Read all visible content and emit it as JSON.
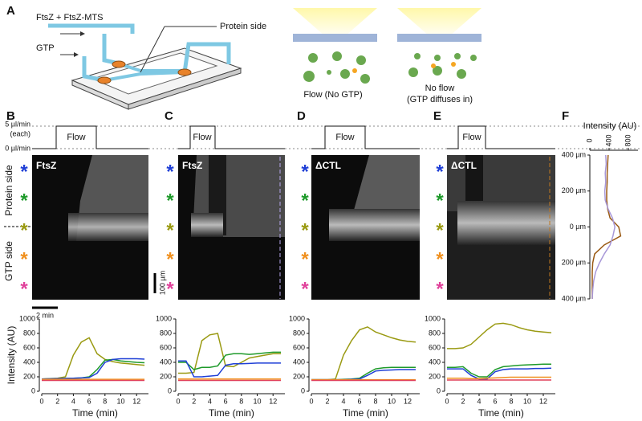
{
  "figure": {
    "panel_labels": [
      "A",
      "B",
      "C",
      "D",
      "E",
      "F"
    ],
    "schematic": {
      "inputs": [
        "FtsZ + FtsZ-MTS",
        "GTP"
      ],
      "callout": "Protein side",
      "conditions": [
        [
          "Flow (No GTP)"
        ],
        [
          "No flow",
          "(GTP diffuses in)"
        ]
      ]
    },
    "flow_axis": {
      "high": "5 µl/min",
      "high_note": "(each)",
      "low": "0 µl/min"
    },
    "kymographs": [
      {
        "flow": "Flow",
        "protein": "FtsZ"
      },
      {
        "flow": "Flow",
        "protein": "FtsZ"
      },
      {
        "flow": "Flow",
        "protein": "ΔCTL"
      },
      {
        "flow": "Flow",
        "protein": "ΔCTL"
      }
    ],
    "side_labels": [
      "Protein side",
      "GTP side"
    ],
    "markers": [
      {
        "text": "*",
        "color": "#1f3fd6"
      },
      {
        "text": "*",
        "color": "#1e9a2a"
      },
      {
        "text": "*",
        "color": "#9a9a12"
      },
      {
        "text": "*",
        "color": "#f0901e"
      },
      {
        "text": "*",
        "color": "#e0409a"
      }
    ],
    "scale_bars": {
      "space": "100 µm",
      "time": "2 min"
    }
  },
  "chart_data": [
    {
      "type": "line",
      "ylabel": "Intensity (AU)",
      "xlabel": "Time (min)",
      "x": [
        0,
        1,
        2,
        3,
        4,
        5,
        6,
        7,
        8,
        9,
        10,
        11,
        12,
        13
      ],
      "xlim": [
        0,
        13.5
      ],
      "xticks": [
        0,
        2,
        4,
        6,
        8,
        10,
        12
      ],
      "ylim": [
        0,
        1000
      ],
      "yticks": [
        0,
        200,
        400,
        600,
        800,
        1000
      ],
      "series": [
        {
          "color": "#9a9a12",
          "values": [
            170,
            175,
            180,
            200,
            500,
            680,
            740,
            520,
            440,
            410,
            390,
            380,
            370,
            360
          ]
        },
        {
          "color": "#1e9a2a",
          "values": [
            170,
            172,
            175,
            178,
            180,
            185,
            200,
            300,
            430,
            440,
            420,
            410,
            400,
            395
          ]
        },
        {
          "color": "#1f3fd6",
          "values": [
            170,
            172,
            175,
            178,
            180,
            185,
            190,
            250,
            400,
            440,
            450,
            450,
            450,
            445
          ]
        },
        {
          "color": "#f0901e",
          "values": [
            165,
            165,
            165,
            165,
            165,
            165,
            165,
            165,
            165,
            165,
            165,
            165,
            165,
            165
          ]
        },
        {
          "color": "#e0405a",
          "values": [
            150,
            150,
            150,
            150,
            150,
            150,
            150,
            150,
            150,
            150,
            150,
            150,
            150,
            150
          ]
        }
      ]
    },
    {
      "type": "line",
      "xlabel": "Time (min)",
      "x": [
        0,
        1,
        2,
        3,
        4,
        5,
        6,
        7,
        8,
        9,
        10,
        11,
        12,
        13
      ],
      "xlim": [
        0,
        13.5
      ],
      "xticks": [
        0,
        2,
        4,
        6,
        8,
        10,
        12
      ],
      "ylim": [
        0,
        1000
      ],
      "yticks": [
        0,
        200,
        400,
        600,
        800,
        1000
      ],
      "series": [
        {
          "color": "#9a9a12",
          "values": [
            250,
            250,
            260,
            700,
            780,
            800,
            350,
            340,
            400,
            460,
            480,
            500,
            520,
            520
          ]
        },
        {
          "color": "#1e9a2a",
          "values": [
            400,
            400,
            300,
            330,
            330,
            350,
            500,
            520,
            520,
            510,
            520,
            530,
            540,
            540
          ]
        },
        {
          "color": "#1f3fd6",
          "values": [
            420,
            420,
            200,
            200,
            210,
            220,
            360,
            380,
            380,
            385,
            390,
            390,
            390,
            390
          ]
        },
        {
          "color": "#f0901e",
          "values": [
            170,
            170,
            170,
            170,
            170,
            170,
            170,
            170,
            170,
            170,
            170,
            170,
            170,
            170
          ]
        },
        {
          "color": "#e0405a",
          "values": [
            150,
            150,
            150,
            150,
            150,
            150,
            150,
            150,
            150,
            150,
            150,
            150,
            150,
            150
          ]
        }
      ]
    },
    {
      "type": "line",
      "xlabel": "Time (min)",
      "x": [
        0,
        1,
        2,
        3,
        4,
        5,
        6,
        7,
        8,
        9,
        10,
        11,
        12,
        13
      ],
      "xlim": [
        0,
        13.5
      ],
      "xticks": [
        0,
        2,
        4,
        6,
        8,
        10,
        12
      ],
      "ylim": [
        0,
        1000
      ],
      "yticks": [
        0,
        200,
        400,
        600,
        800,
        1000
      ],
      "series": [
        {
          "color": "#9a9a12",
          "values": [
            160,
            160,
            160,
            170,
            500,
            700,
            850,
            890,
            820,
            780,
            740,
            710,
            690,
            680
          ]
        },
        {
          "color": "#1e9a2a",
          "values": [
            160,
            160,
            160,
            160,
            165,
            170,
            180,
            250,
            310,
            325,
            330,
            330,
            330,
            330
          ]
        },
        {
          "color": "#1f3fd6",
          "values": [
            160,
            160,
            160,
            160,
            160,
            165,
            170,
            220,
            280,
            290,
            295,
            300,
            300,
            300
          ]
        },
        {
          "color": "#f0901e",
          "values": [
            160,
            160,
            160,
            160,
            160,
            160,
            160,
            160,
            160,
            160,
            160,
            160,
            160,
            160
          ]
        },
        {
          "color": "#e0405a",
          "values": [
            150,
            150,
            150,
            150,
            150,
            150,
            150,
            150,
            150,
            150,
            150,
            150,
            150,
            150
          ]
        }
      ]
    },
    {
      "type": "line",
      "xlabel": "Time (min)",
      "x": [
        0,
        1,
        2,
        3,
        4,
        5,
        6,
        7,
        8,
        9,
        10,
        11,
        12,
        13
      ],
      "xlim": [
        0,
        13.5
      ],
      "xticks": [
        0,
        2,
        4,
        6,
        8,
        10,
        12
      ],
      "ylim": [
        0,
        1000
      ],
      "yticks": [
        0,
        200,
        400,
        600,
        800,
        1000
      ],
      "series": [
        {
          "color": "#9a9a12",
          "values": [
            590,
            590,
            600,
            650,
            750,
            850,
            930,
            940,
            920,
            880,
            850,
            830,
            820,
            810
          ]
        },
        {
          "color": "#1e9a2a",
          "values": [
            330,
            330,
            340,
            250,
            200,
            200,
            300,
            340,
            350,
            360,
            365,
            370,
            375,
            375
          ]
        },
        {
          "color": "#1f3fd6",
          "values": [
            310,
            310,
            310,
            220,
            170,
            170,
            270,
            300,
            310,
            310,
            310,
            315,
            315,
            320
          ]
        },
        {
          "color": "#f0901e",
          "values": [
            180,
            180,
            180,
            175,
            175,
            180,
            185,
            190,
            195,
            195,
            195,
            195,
            195,
            195
          ]
        },
        {
          "color": "#e0405a",
          "values": [
            155,
            155,
            155,
            155,
            155,
            155,
            155,
            155,
            155,
            155,
            155,
            155,
            155,
            155
          ]
        }
      ]
    },
    {
      "type": "profile",
      "xlabel": "Intensity (AU)",
      "y": [
        400,
        350,
        300,
        250,
        200,
        150,
        100,
        50,
        0,
        -50,
        -100,
        -150,
        -200,
        -250,
        -300,
        -350,
        -400
      ],
      "xlim": [
        0,
        1000
      ],
      "xticks": [
        0,
        400,
        800
      ],
      "ylim": [
        -400,
        400
      ],
      "yticks": [
        {
          "value": 400,
          "label": "400 µm"
        },
        {
          "value": 200,
          "label": "200 µm"
        },
        {
          "value": 0,
          "label": "0 µm"
        },
        {
          "value": -200,
          "label": "200 µm"
        },
        {
          "value": -400,
          "label": "400 µm"
        }
      ],
      "series": [
        {
          "color": "#9a5a14",
          "values": [
            380,
            370,
            360,
            360,
            350,
            350,
            370,
            420,
            600,
            640,
            300,
            100,
            60,
            50,
            50,
            50,
            50
          ]
        },
        {
          "color": "#a898d8",
          "values": [
            330,
            340,
            320,
            330,
            310,
            320,
            380,
            470,
            520,
            480,
            420,
            300,
            200,
            120,
            80,
            60,
            50
          ]
        }
      ]
    }
  ]
}
